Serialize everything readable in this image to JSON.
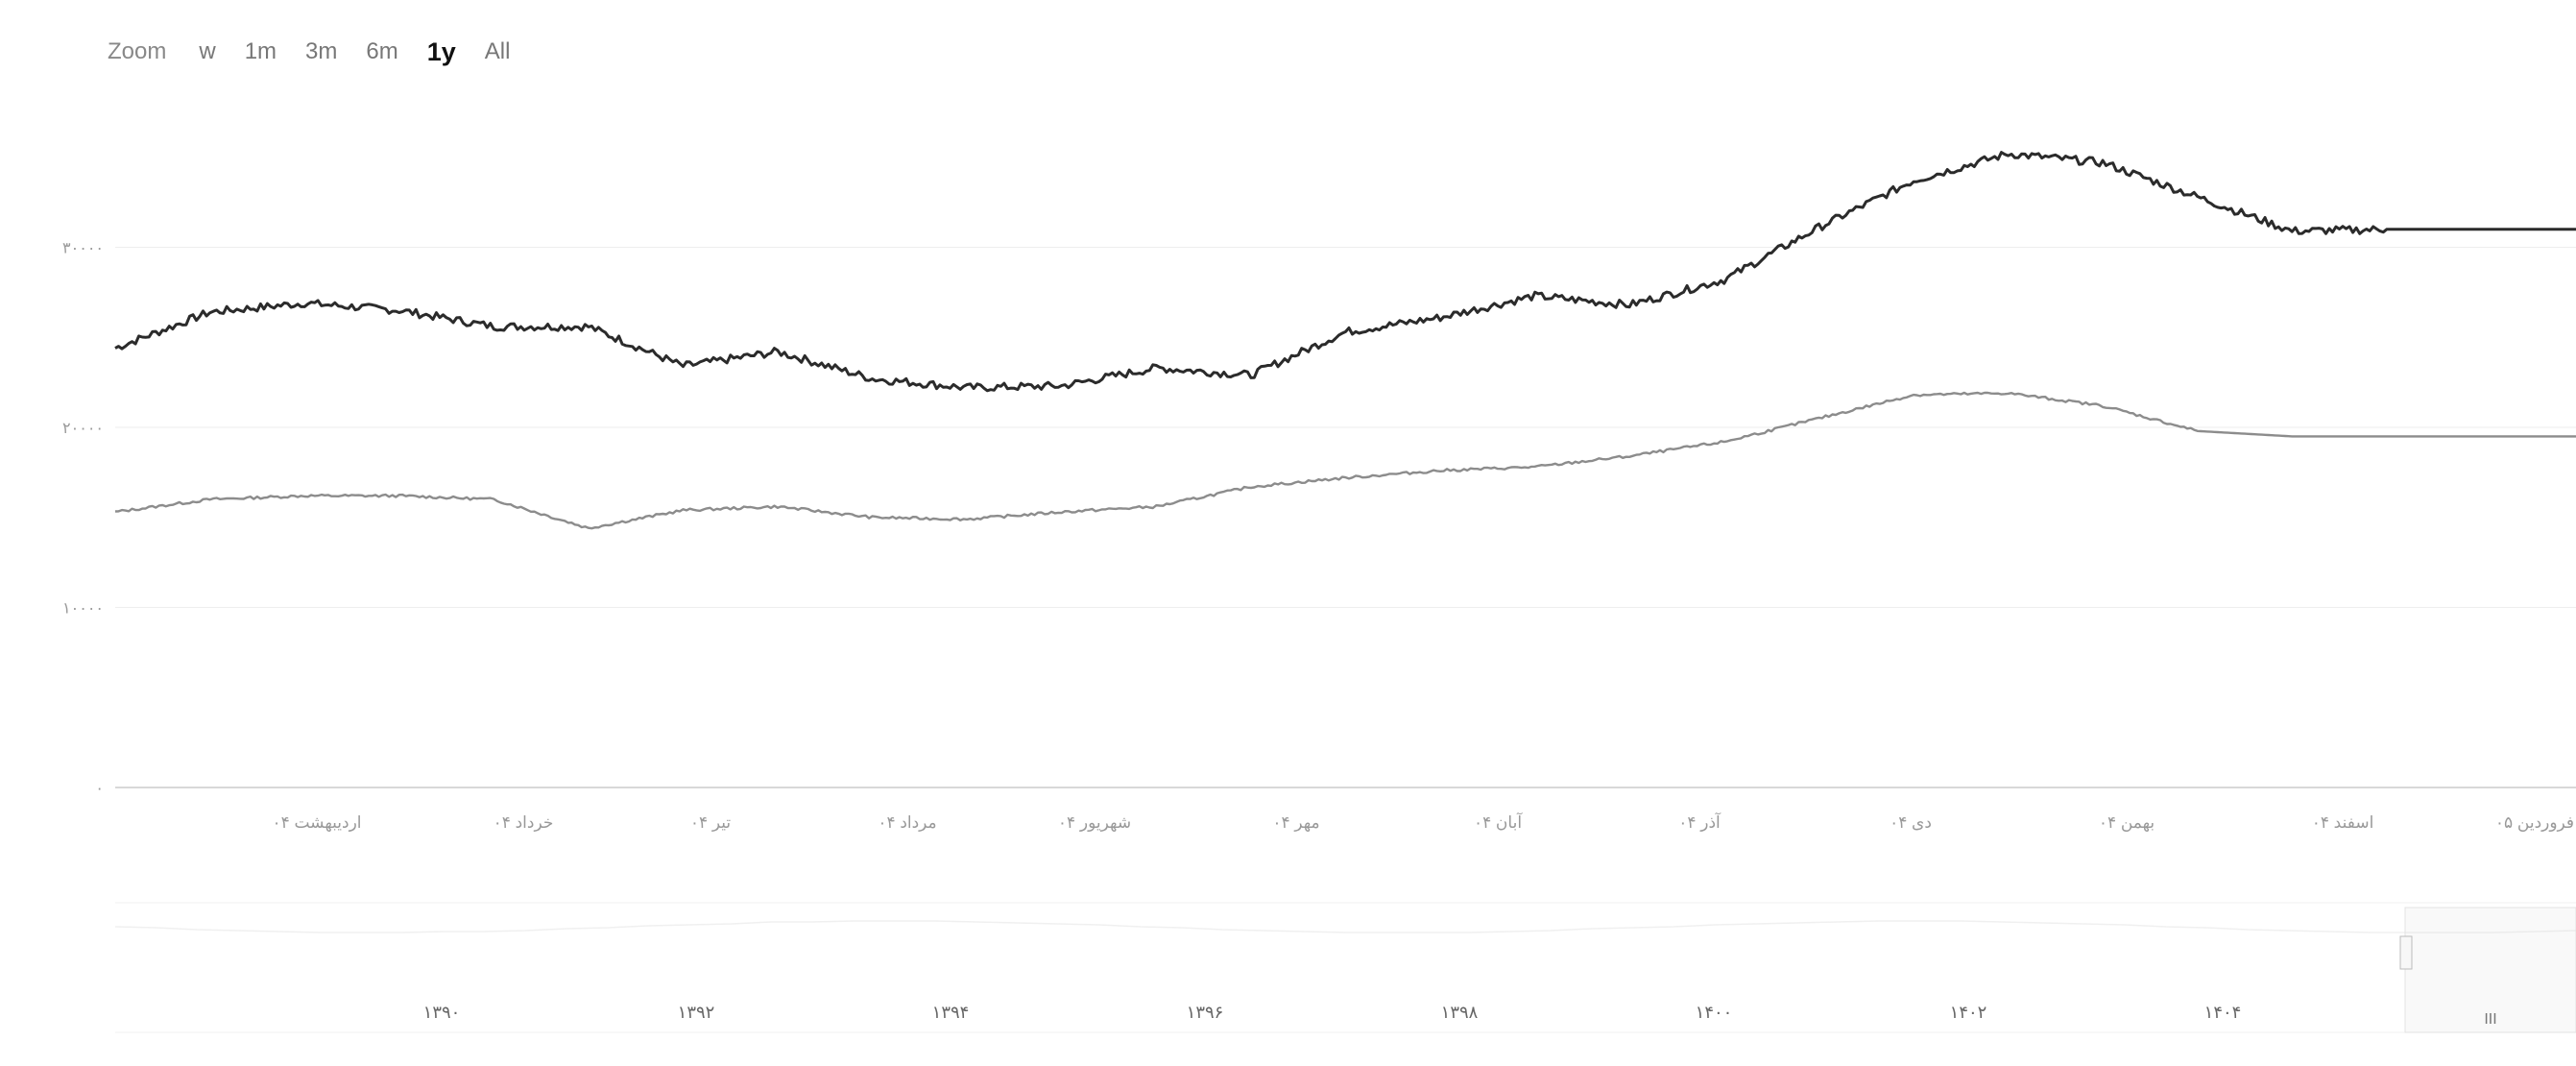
{
  "zoom": {
    "label": "Zoom",
    "buttons": [
      {
        "label": "w",
        "active": false
      },
      {
        "label": "1m",
        "active": false
      },
      {
        "label": "3m",
        "active": false
      },
      {
        "label": "6m",
        "active": false
      },
      {
        "label": "1y",
        "active": true
      },
      {
        "label": "All",
        "active": false
      }
    ]
  },
  "colors": {
    "series_dark": "#2b2b2b",
    "series_light": "#8c8c8c",
    "grid": "#eeeeee"
  },
  "navigator": {
    "ticks": [
      "۱۳۹۰",
      "۱۳۹۲",
      "۱۳۹۴",
      "۱۳۹۶",
      "۱۳۹۸",
      "۱۴۰۰",
      "۱۴۰۲",
      "۱۴۰۴"
    ],
    "handle_label": "III"
  },
  "chart_data": {
    "type": "line",
    "title": "",
    "xlabel": "",
    "ylabel": "",
    "ylim": [
      0,
      40000
    ],
    "grid": true,
    "legend": "none",
    "y_ticks": [
      "۰",
      "۱۰۰۰۰",
      "۲۰۰۰۰",
      "۳۰۰۰۰"
    ],
    "x_tick_labels": [
      "اردیبهشت ۰۴",
      "خرداد ۰۴",
      "تیر ۰۴",
      "مرداد ۰۴",
      "شهریور ۰۴",
      "مهر ۰۴",
      "آبان ۰۴",
      "آذر ۰۴",
      "دی ۰۴",
      "بهمن ۰۴",
      "اسفند ۰۴",
      "فروردین ۰۵"
    ],
    "x": [
      0,
      0.5,
      1,
      1.5,
      2,
      2.5,
      3,
      3.5,
      4,
      4.5,
      5,
      5.5,
      6,
      6.5,
      7,
      7.5,
      8,
      8.5,
      9,
      9.5,
      10,
      10.5,
      11,
      11.5,
      12,
      12.5,
      13
    ],
    "series": [
      {
        "values": [
          24400,
          26400,
          26900,
          26500,
          25600,
          25600,
          23400,
          24200,
          22700,
          22200,
          22300,
          23300,
          22900,
          25300,
          26100,
          27300,
          26800,
          28200,
          31100,
          33700,
          35200,
          34700,
          32800,
          30900,
          31000,
          31000,
          31000
        ]
      },
      {
        "values": [
          15300,
          16000,
          16200,
          16200,
          16000,
          14400,
          15400,
          15600,
          15000,
          14900,
          15300,
          15600,
          16700,
          17200,
          17600,
          17800,
          18400,
          19200,
          20500,
          21800,
          21900,
          21200,
          19800,
          19500,
          19500,
          19500,
          19500
        ]
      }
    ]
  }
}
